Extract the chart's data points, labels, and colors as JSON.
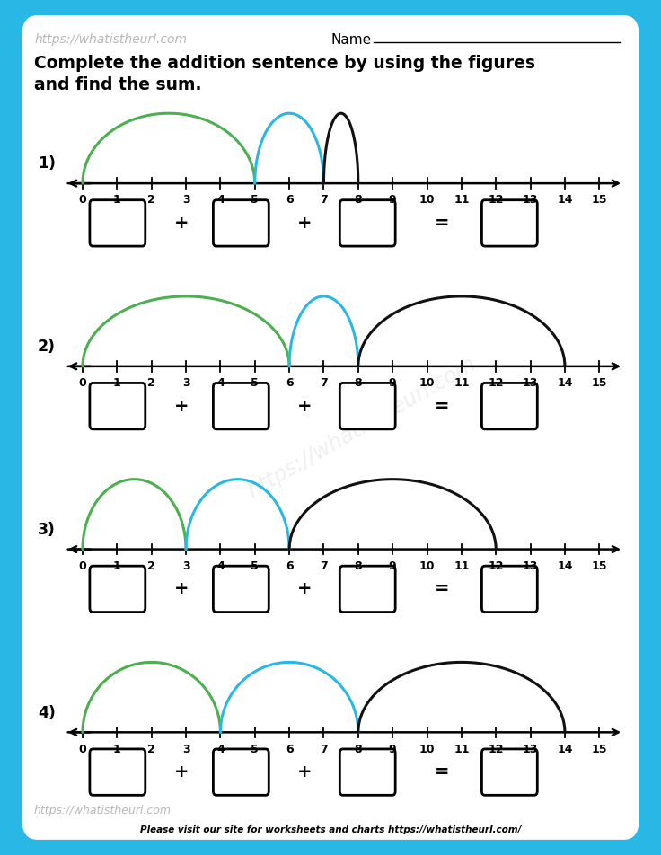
{
  "background_color": "#29B8E5",
  "paper_color": "#FFFFFF",
  "header_url": "https://whatistheurl.com",
  "name_label": "Name",
  "footer_text": "Please visit our site for worksheets and charts https://whatistheurl.com/",
  "title_line1": "Complete the addition sentence by using the figures",
  "title_line2": "and find the sum.",
  "number_line_min": 0,
  "number_line_max": 15,
  "green_color": "#4CAF50",
  "blue_color": "#29B8E5",
  "black_color": "#111111",
  "problems": [
    {
      "label": "1)",
      "arcs": [
        {
          "start": 0,
          "end": 5,
          "color_key": "green"
        },
        {
          "start": 5,
          "end": 7,
          "color_key": "blue"
        },
        {
          "start": 7,
          "end": 8,
          "color_key": "black"
        }
      ]
    },
    {
      "label": "2)",
      "arcs": [
        {
          "start": 0,
          "end": 6,
          "color_key": "green"
        },
        {
          "start": 6,
          "end": 8,
          "color_key": "blue"
        },
        {
          "start": 8,
          "end": 14,
          "color_key": "black"
        }
      ]
    },
    {
      "label": "3)",
      "arcs": [
        {
          "start": 0,
          "end": 3,
          "color_key": "green"
        },
        {
          "start": 3,
          "end": 6,
          "color_key": "blue"
        },
        {
          "start": 6,
          "end": 12,
          "color_key": "black"
        }
      ]
    },
    {
      "label": "4)",
      "arcs": [
        {
          "start": 0,
          "end": 4,
          "color_key": "green"
        },
        {
          "start": 4,
          "end": 8,
          "color_key": "blue"
        },
        {
          "start": 8,
          "end": 14,
          "color_key": "black"
        }
      ]
    }
  ]
}
